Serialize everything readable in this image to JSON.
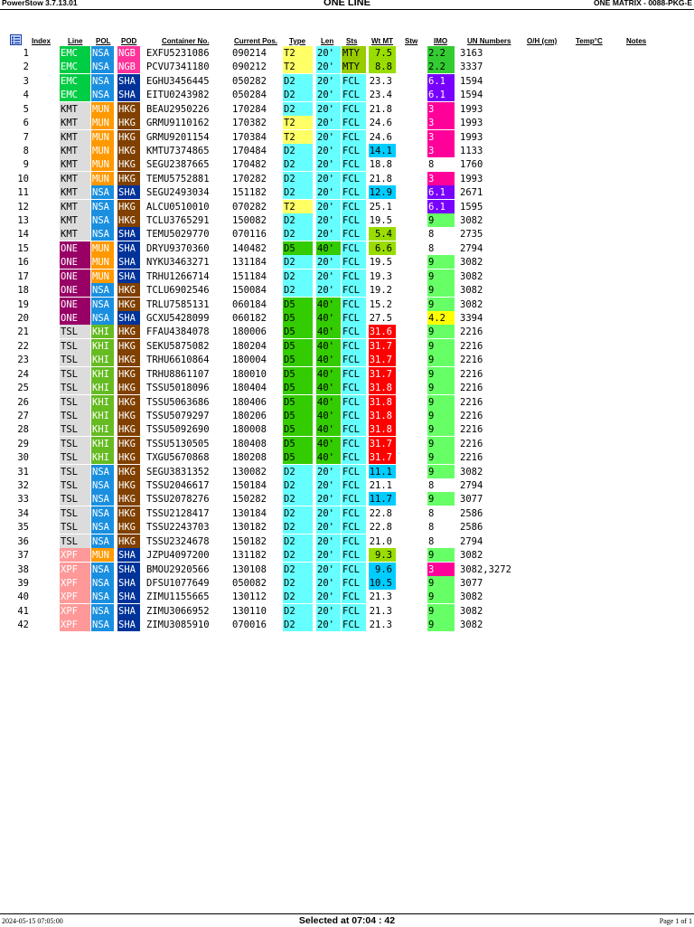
{
  "header": {
    "app_version": "PowerStow 3.7.13.01",
    "title": "ONE LINE",
    "document": "ONE MATRIX - 0088-PKG-E"
  },
  "icons": {
    "list_icon": "list-view-icon"
  },
  "columns": {
    "index": "Index",
    "line": "Line",
    "pol": "POL",
    "pod": "POD",
    "container": "Container No.",
    "position": "Current Pos.",
    "type": "Type",
    "length": "Len",
    "status": "Sts",
    "weight": "Wt MT",
    "stowage": "Stw",
    "imo": "IMO",
    "un_numbers": "UN Numbers",
    "over_height": "O/H (cm)",
    "temperature": "Temp°C",
    "notes": "Notes"
  },
  "colors": {
    "line": {
      "EMC": "#00cc44",
      "KMT": "#dcdcdc",
      "ONE": "#990066",
      "TSL": "#dcdcdc",
      "XPF": "#ff9999"
    },
    "pol": {
      "NSA": "#1a8fe0",
      "MUN": "#ff9900",
      "KHI": "#66bb22"
    },
    "pod": {
      "NGB": "#ff3399",
      "SHA": "#003399",
      "HKG": "#804000"
    },
    "type": {
      "T2": "#ffff66",
      "D2": "#66ffff",
      "D5": "#33cc00"
    },
    "length": {
      "20'": "#66ffff",
      "40'": "#33cc00"
    },
    "status": {
      "MTY": "#99cc00",
      "FCL": "#66ffff"
    },
    "weight": {
      "green": "#99dd00",
      "cyan": "#00ccff",
      "red": "#ff0000"
    },
    "imo": {
      "2.2": "#33cc33",
      "6.1": "#7700ff",
      "3": "#ff0099",
      "9": "#66ff66",
      "4.2": "#ffff00"
    }
  },
  "rows": [
    {
      "index": "1",
      "line": "EMC",
      "pol": "NSA",
      "pod": "NGB",
      "container": "EXFU5231086",
      "position": "090214",
      "type": "T2",
      "length": "20'",
      "status": "MTY",
      "weight": "7.5",
      "weight_color": "green",
      "imo": "2.2",
      "un": "3163"
    },
    {
      "index": "2",
      "line": "EMC",
      "pol": "NSA",
      "pod": "NGB",
      "container": "PCVU7341180",
      "position": "090212",
      "type": "T2",
      "length": "20'",
      "status": "MTY",
      "weight": "8.8",
      "weight_color": "green",
      "imo": "2.2",
      "un": "3337"
    },
    {
      "index": "3",
      "line": "EMC",
      "pol": "NSA",
      "pod": "SHA",
      "container": "EGHU3456445",
      "position": "050282",
      "type": "D2",
      "length": "20'",
      "status": "FCL",
      "weight": "23.3",
      "weight_color": "",
      "imo": "6.1",
      "un": "1594"
    },
    {
      "index": "4",
      "line": "EMC",
      "pol": "NSA",
      "pod": "SHA",
      "container": "EITU0243982",
      "position": "050284",
      "type": "D2",
      "length": "20'",
      "status": "FCL",
      "weight": "23.4",
      "weight_color": "",
      "imo": "6.1",
      "un": "1594"
    },
    {
      "index": "5",
      "line": "KMT",
      "pol": "MUN",
      "pod": "HKG",
      "container": "BEAU2950226",
      "position": "170284",
      "type": "D2",
      "length": "20'",
      "status": "FCL",
      "weight": "21.8",
      "weight_color": "",
      "imo": "3",
      "un": "1993"
    },
    {
      "index": "6",
      "line": "KMT",
      "pol": "MUN",
      "pod": "HKG",
      "container": "GRMU9110162",
      "position": "170382",
      "type": "T2",
      "length": "20'",
      "status": "FCL",
      "weight": "24.6",
      "weight_color": "",
      "imo": "3",
      "un": "1993"
    },
    {
      "index": "7",
      "line": "KMT",
      "pol": "MUN",
      "pod": "HKG",
      "container": "GRMU9201154",
      "position": "170384",
      "type": "T2",
      "length": "20'",
      "status": "FCL",
      "weight": "24.6",
      "weight_color": "",
      "imo": "3",
      "un": "1993"
    },
    {
      "index": "8",
      "line": "KMT",
      "pol": "MUN",
      "pod": "HKG",
      "container": "KMTU7374865",
      "position": "170484",
      "type": "D2",
      "length": "20'",
      "status": "FCL",
      "weight": "14.1",
      "weight_color": "cyan",
      "imo": "3",
      "un": "1133"
    },
    {
      "index": "9",
      "line": "KMT",
      "pol": "MUN",
      "pod": "HKG",
      "container": "SEGU2387665",
      "position": "170482",
      "type": "D2",
      "length": "20'",
      "status": "FCL",
      "weight": "18.8",
      "weight_color": "",
      "imo": "8",
      "un": "1760"
    },
    {
      "index": "10",
      "line": "KMT",
      "pol": "MUN",
      "pod": "HKG",
      "container": "TEMU5752881",
      "position": "170282",
      "type": "D2",
      "length": "20'",
      "status": "FCL",
      "weight": "21.8",
      "weight_color": "",
      "imo": "3",
      "un": "1993"
    },
    {
      "index": "11",
      "line": "KMT",
      "pol": "NSA",
      "pod": "SHA",
      "container": "SEGU2493034",
      "position": "151182",
      "type": "D2",
      "length": "20'",
      "status": "FCL",
      "weight": "12.9",
      "weight_color": "cyan",
      "imo": "6.1",
      "un": "2671"
    },
    {
      "index": "12",
      "line": "KMT",
      "pol": "NSA",
      "pod": "HKG",
      "container": "ALCU0510010",
      "position": "070282",
      "type": "T2",
      "length": "20'",
      "status": "FCL",
      "weight": "25.1",
      "weight_color": "",
      "imo": "6.1",
      "un": "1595"
    },
    {
      "index": "13",
      "line": "KMT",
      "pol": "NSA",
      "pod": "HKG",
      "container": "TCLU3765291",
      "position": "150082",
      "type": "D2",
      "length": "20'",
      "status": "FCL",
      "weight": "19.5",
      "weight_color": "",
      "imo": "9",
      "un": "3082"
    },
    {
      "index": "14",
      "line": "KMT",
      "pol": "NSA",
      "pod": "SHA",
      "container": "TEMU5029770",
      "position": "070116",
      "type": "D2",
      "length": "20'",
      "status": "FCL",
      "weight": "5.4",
      "weight_color": "green",
      "imo": "8",
      "un": "2735"
    },
    {
      "index": "15",
      "line": "ONE",
      "pol": "MUN",
      "pod": "SHA",
      "container": "DRYU9370360",
      "position": "140482",
      "type": "D5",
      "length": "40'",
      "status": "FCL",
      "weight": "6.6",
      "weight_color": "green",
      "imo": "8",
      "un": "2794"
    },
    {
      "index": "16",
      "line": "ONE",
      "pol": "MUN",
      "pod": "SHA",
      "container": "NYKU3463271",
      "position": "131184",
      "type": "D2",
      "length": "20'",
      "status": "FCL",
      "weight": "19.5",
      "weight_color": "",
      "imo": "9",
      "un": "3082"
    },
    {
      "index": "17",
      "line": "ONE",
      "pol": "MUN",
      "pod": "SHA",
      "container": "TRHU1266714",
      "position": "151184",
      "type": "D2",
      "length": "20'",
      "status": "FCL",
      "weight": "19.3",
      "weight_color": "",
      "imo": "9",
      "un": "3082"
    },
    {
      "index": "18",
      "line": "ONE",
      "pol": "NSA",
      "pod": "HKG",
      "container": "TCLU6902546",
      "position": "150084",
      "type": "D2",
      "length": "20'",
      "status": "FCL",
      "weight": "19.2",
      "weight_color": "",
      "imo": "9",
      "un": "3082"
    },
    {
      "index": "19",
      "line": "ONE",
      "pol": "NSA",
      "pod": "HKG",
      "container": "TRLU7585131",
      "position": "060184",
      "type": "D5",
      "length": "40'",
      "status": "FCL",
      "weight": "15.2",
      "weight_color": "",
      "imo": "9",
      "un": "3082"
    },
    {
      "index": "20",
      "line": "ONE",
      "pol": "NSA",
      "pod": "SHA",
      "container": "GCXU5428099",
      "position": "060182",
      "type": "D5",
      "length": "40'",
      "status": "FCL",
      "weight": "27.5",
      "weight_color": "",
      "imo": "4.2",
      "un": "3394"
    },
    {
      "index": "21",
      "line": "TSL",
      "pol": "KHI",
      "pod": "HKG",
      "container": "FFAU4384078",
      "position": "180006",
      "type": "D5",
      "length": "40'",
      "status": "FCL",
      "weight": "31.6",
      "weight_color": "red",
      "imo": "9",
      "un": "2216"
    },
    {
      "index": "22",
      "line": "TSL",
      "pol": "KHI",
      "pod": "HKG",
      "container": "SEKU5875082",
      "position": "180204",
      "type": "D5",
      "length": "40'",
      "status": "FCL",
      "weight": "31.7",
      "weight_color": "red",
      "imo": "9",
      "un": "2216"
    },
    {
      "index": "23",
      "line": "TSL",
      "pol": "KHI",
      "pod": "HKG",
      "container": "TRHU6610864",
      "position": "180004",
      "type": "D5",
      "length": "40'",
      "status": "FCL",
      "weight": "31.7",
      "weight_color": "red",
      "imo": "9",
      "un": "2216"
    },
    {
      "index": "24",
      "line": "TSL",
      "pol": "KHI",
      "pod": "HKG",
      "container": "TRHU8861107",
      "position": "180010",
      "type": "D5",
      "length": "40'",
      "status": "FCL",
      "weight": "31.7",
      "weight_color": "red",
      "imo": "9",
      "un": "2216"
    },
    {
      "index": "25",
      "line": "TSL",
      "pol": "KHI",
      "pod": "HKG",
      "container": "TSSU5018096",
      "position": "180404",
      "type": "D5",
      "length": "40'",
      "status": "FCL",
      "weight": "31.8",
      "weight_color": "red",
      "imo": "9",
      "un": "2216"
    },
    {
      "index": "26",
      "line": "TSL",
      "pol": "KHI",
      "pod": "HKG",
      "container": "TSSU5063686",
      "position": "180406",
      "type": "D5",
      "length": "40'",
      "status": "FCL",
      "weight": "31.8",
      "weight_color": "red",
      "imo": "9",
      "un": "2216"
    },
    {
      "index": "27",
      "line": "TSL",
      "pol": "KHI",
      "pod": "HKG",
      "container": "TSSU5079297",
      "position": "180206",
      "type": "D5",
      "length": "40'",
      "status": "FCL",
      "weight": "31.8",
      "weight_color": "red",
      "imo": "9",
      "un": "2216"
    },
    {
      "index": "28",
      "line": "TSL",
      "pol": "KHI",
      "pod": "HKG",
      "container": "TSSU5092690",
      "position": "180008",
      "type": "D5",
      "length": "40'",
      "status": "FCL",
      "weight": "31.8",
      "weight_color": "red",
      "imo": "9",
      "un": "2216"
    },
    {
      "index": "29",
      "line": "TSL",
      "pol": "KHI",
      "pod": "HKG",
      "container": "TSSU5130505",
      "position": "180408",
      "type": "D5",
      "length": "40'",
      "status": "FCL",
      "weight": "31.7",
      "weight_color": "red",
      "imo": "9",
      "un": "2216"
    },
    {
      "index": "30",
      "line": "TSL",
      "pol": "KHI",
      "pod": "HKG",
      "container": "TXGU5670868",
      "position": "180208",
      "type": "D5",
      "length": "40'",
      "status": "FCL",
      "weight": "31.7",
      "weight_color": "red",
      "imo": "9",
      "un": "2216"
    },
    {
      "index": "31",
      "line": "TSL",
      "pol": "NSA",
      "pod": "HKG",
      "container": "SEGU3831352",
      "position": "130082",
      "type": "D2",
      "length": "20'",
      "status": "FCL",
      "weight": "11.1",
      "weight_color": "cyan",
      "imo": "9",
      "un": "3082"
    },
    {
      "index": "32",
      "line": "TSL",
      "pol": "NSA",
      "pod": "HKG",
      "container": "TSSU2046617",
      "position": "150184",
      "type": "D2",
      "length": "20'",
      "status": "FCL",
      "weight": "21.1",
      "weight_color": "",
      "imo": "8",
      "un": "2794"
    },
    {
      "index": "33",
      "line": "TSL",
      "pol": "NSA",
      "pod": "HKG",
      "container": "TSSU2078276",
      "position": "150282",
      "type": "D2",
      "length": "20'",
      "status": "FCL",
      "weight": "11.7",
      "weight_color": "cyan",
      "imo": "9",
      "un": "3077"
    },
    {
      "index": "34",
      "line": "TSL",
      "pol": "NSA",
      "pod": "HKG",
      "container": "TSSU2128417",
      "position": "130184",
      "type": "D2",
      "length": "20'",
      "status": "FCL",
      "weight": "22.8",
      "weight_color": "",
      "imo": "8",
      "un": "2586"
    },
    {
      "index": "35",
      "line": "TSL",
      "pol": "NSA",
      "pod": "HKG",
      "container": "TSSU2243703",
      "position": "130182",
      "type": "D2",
      "length": "20'",
      "status": "FCL",
      "weight": "22.8",
      "weight_color": "",
      "imo": "8",
      "un": "2586"
    },
    {
      "index": "36",
      "line": "TSL",
      "pol": "NSA",
      "pod": "HKG",
      "container": "TSSU2324678",
      "position": "150182",
      "type": "D2",
      "length": "20'",
      "status": "FCL",
      "weight": "21.0",
      "weight_color": "",
      "imo": "8",
      "un": "2794"
    },
    {
      "index": "37",
      "line": "XPF",
      "pol": "MUN",
      "pod": "SHA",
      "container": "JZPU4097200",
      "position": "131182",
      "type": "D2",
      "length": "20'",
      "status": "FCL",
      "weight": "9.3",
      "weight_color": "green",
      "imo": "9",
      "un": "3082"
    },
    {
      "index": "38",
      "line": "XPF",
      "pol": "NSA",
      "pod": "SHA",
      "container": "BMOU2920566",
      "position": "130108",
      "type": "D2",
      "length": "20'",
      "status": "FCL",
      "weight": "9.6",
      "weight_color": "cyan",
      "imo": "3",
      "un": "3082,3272"
    },
    {
      "index": "39",
      "line": "XPF",
      "pol": "NSA",
      "pod": "SHA",
      "container": "DFSU1077649",
      "position": "050082",
      "type": "D2",
      "length": "20'",
      "status": "FCL",
      "weight": "10.5",
      "weight_color": "cyan",
      "imo": "9",
      "un": "3077"
    },
    {
      "index": "40",
      "line": "XPF",
      "pol": "NSA",
      "pod": "SHA",
      "container": "ZIMU1155665",
      "position": "130112",
      "type": "D2",
      "length": "20'",
      "status": "FCL",
      "weight": "21.3",
      "weight_color": "",
      "imo": "9",
      "un": "3082"
    },
    {
      "index": "41",
      "line": "XPF",
      "pol": "NSA",
      "pod": "SHA",
      "container": "ZIMU3066952",
      "position": "130110",
      "type": "D2",
      "length": "20'",
      "status": "FCL",
      "weight": "21.3",
      "weight_color": "",
      "imo": "9",
      "un": "3082"
    },
    {
      "index": "42",
      "line": "XPF",
      "pol": "NSA",
      "pod": "SHA",
      "container": "ZIMU3085910",
      "position": "070016",
      "type": "D2",
      "length": "20'",
      "status": "FCL",
      "weight": "21.3",
      "weight_color": "",
      "imo": "9",
      "un": "3082"
    }
  ],
  "footer": {
    "datetime": "2024-05-15   07:05:00",
    "selected": "Selected at 07:04 : 42",
    "page": "Page 1 of 1"
  }
}
